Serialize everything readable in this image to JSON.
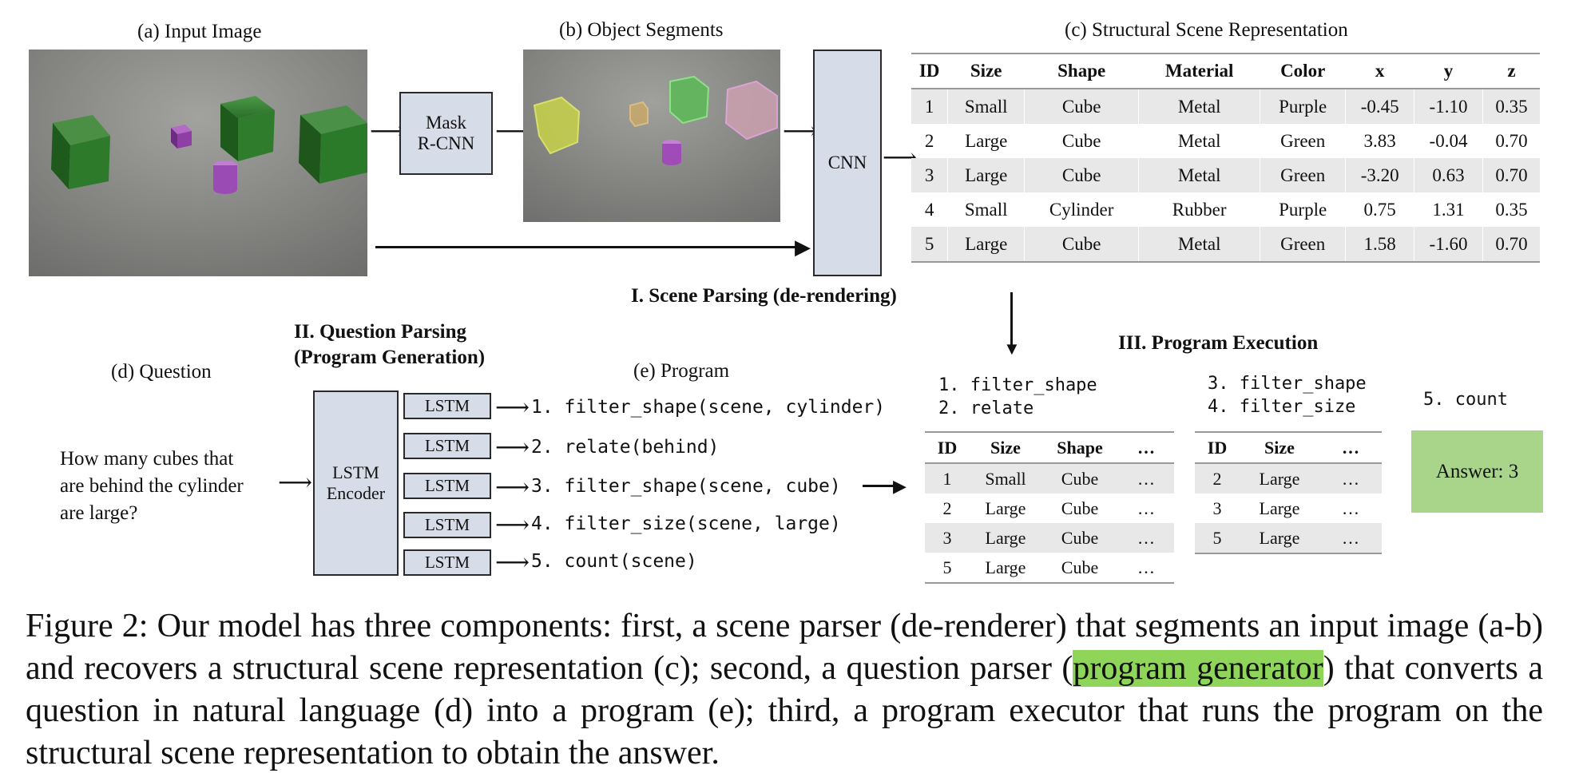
{
  "labels": {
    "input_image": "(a) Input Image",
    "object_segments": "(b) Object Segments",
    "scene_repr": "(c) Structural Scene Representation",
    "question": "(d) Question",
    "program": "(e) Program",
    "scene_parsing": "I. Scene Parsing (de-rendering)",
    "question_parsing_1": "II. Question Parsing",
    "question_parsing_2": "(Program Generation)",
    "program_execution": "III. Program Execution"
  },
  "boxes": {
    "mask_rcnn_1": "Mask",
    "mask_rcnn_2": "R-CNN",
    "cnn": "CNN",
    "lstm_encoder_1": "LSTM",
    "lstm_encoder_2": "Encoder",
    "lstm": "LSTM",
    "answer": "Answer: 3"
  },
  "question_text": [
    "How many cubes that",
    "are behind the cylinder",
    "are large?"
  ],
  "program_lines": [
    "1. filter_shape(scene, cylinder)",
    "2. relate(behind)",
    "3. filter_shape(scene, cube)",
    "4. filter_size(scene, large)",
    "5. count(scene)"
  ],
  "scene_table": {
    "headers": [
      "ID",
      "Size",
      "Shape",
      "Material",
      "Color",
      "x",
      "y",
      "z"
    ],
    "rows": [
      [
        "1",
        "Small",
        "Cube",
        "Metal",
        "Purple",
        "-0.45",
        "-1.10",
        "0.35"
      ],
      [
        "2",
        "Large",
        "Cube",
        "Metal",
        "Green",
        "3.83",
        "-0.04",
        "0.70"
      ],
      [
        "3",
        "Large",
        "Cube",
        "Metal",
        "Green",
        "-3.20",
        "0.63",
        "0.70"
      ],
      [
        "4",
        "Small",
        "Cylinder",
        "Rubber",
        "Purple",
        "0.75",
        "1.31",
        "0.35"
      ],
      [
        "5",
        "Large",
        "Cube",
        "Metal",
        "Green",
        "1.58",
        "-1.60",
        "0.70"
      ]
    ]
  },
  "exec_step_a": {
    "steps": [
      "1. filter_shape",
      "2. relate"
    ],
    "headers": [
      "ID",
      "Size",
      "Shape",
      "…"
    ],
    "rows": [
      [
        "1",
        "Small",
        "Cube",
        "…"
      ],
      [
        "2",
        "Large",
        "Cube",
        "…"
      ],
      [
        "3",
        "Large",
        "Cube",
        "…"
      ],
      [
        "5",
        "Large",
        "Cube",
        "…"
      ]
    ]
  },
  "exec_step_b": {
    "steps": [
      "3. filter_shape",
      "4. filter_size"
    ],
    "headers": [
      "ID",
      "Size",
      "…"
    ],
    "rows": [
      [
        "2",
        "Large",
        "…"
      ],
      [
        "3",
        "Large",
        "…"
      ],
      [
        "5",
        "Large",
        "…"
      ]
    ]
  },
  "exec_step_c": {
    "step": "5. count"
  },
  "caption": {
    "before": "Figure 2: Our model has three components: first, a scene parser (de-renderer) that segments an input image (a-b) and recovers a structural scene representation (c); second, a question parser (",
    "highlight": "program generator",
    "after": ") that converts a question in natural language (d) into a program (e); third, a program executor that runs the program on the structural scene representation to obtain the answer."
  },
  "colors": {
    "box_fill": "#d6dce8",
    "answer_fill": "#a8d58a",
    "highlight": "#8fd55a",
    "row_shade": "#e8e8e8"
  }
}
